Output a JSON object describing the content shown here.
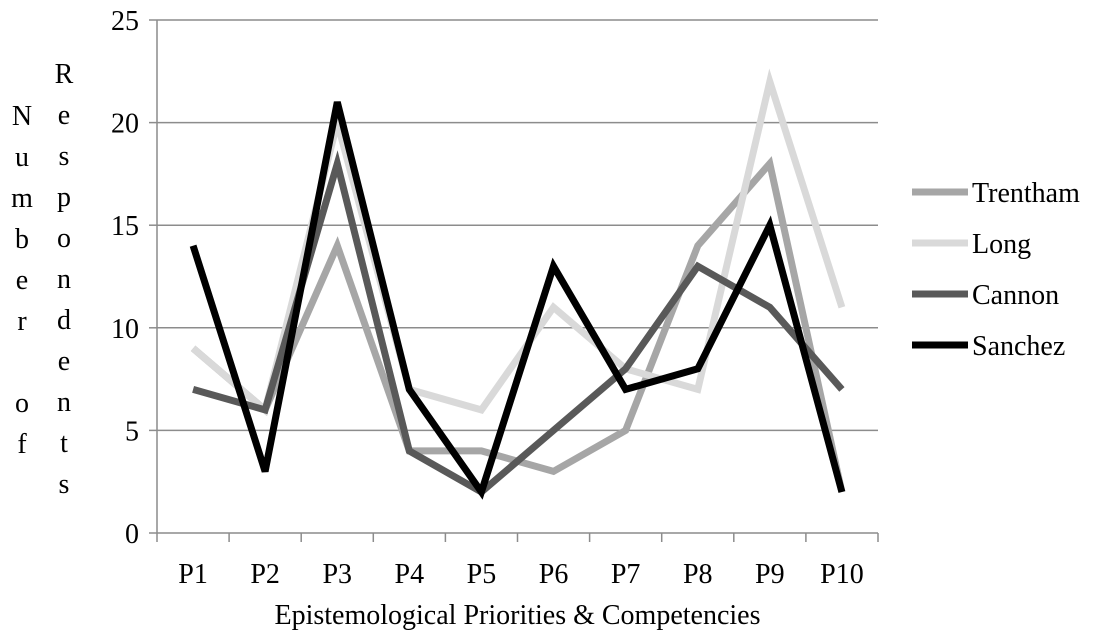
{
  "chart_data": {
    "type": "line",
    "title": "",
    "xlabel": "Epistemological Priorities & Competencies",
    "ylabel_lines": [
      "Number of",
      "Respondents"
    ],
    "categories": [
      "P1",
      "P2",
      "P3",
      "P4",
      "P5",
      "P6",
      "P7",
      "P8",
      "P9",
      "P10"
    ],
    "ylim": [
      0,
      25
    ],
    "yticks": [
      "0",
      "5",
      "10",
      "15",
      "20",
      "25"
    ],
    "grid": true,
    "legend_position": "right",
    "series": [
      {
        "name": "Trentham",
        "color": "#a6a6a6",
        "values": [
          9,
          6,
          14,
          4,
          4,
          3,
          5,
          14,
          18,
          2
        ]
      },
      {
        "name": "Long",
        "color": "#d9d9d9",
        "values": [
          9,
          6,
          20,
          7,
          6,
          11,
          8,
          7,
          22,
          11
        ]
      },
      {
        "name": "Cannon",
        "color": "#595959",
        "values": [
          7,
          6,
          18,
          4,
          2,
          5,
          8,
          13,
          11,
          7
        ]
      },
      {
        "name": "Sanchez",
        "color": "#000000",
        "values": [
          14,
          3,
          21,
          7,
          2,
          13,
          7,
          8,
          15,
          2
        ]
      }
    ]
  }
}
